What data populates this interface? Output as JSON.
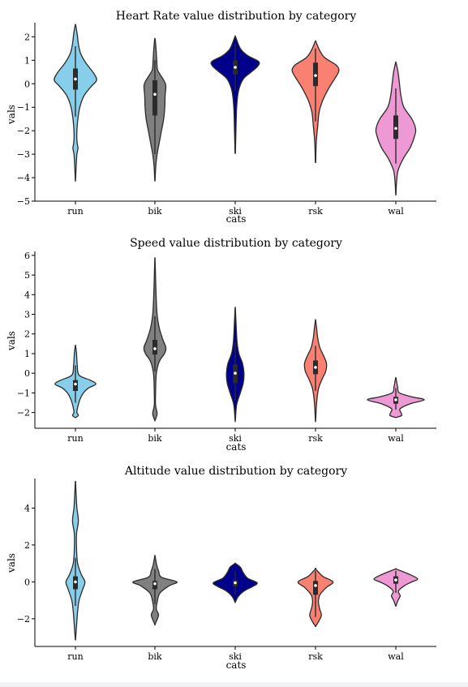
{
  "chart_data": [
    {
      "type": "violin",
      "title": "Heart Rate value distribution by category",
      "xlabel": "cats",
      "ylabel": "vals",
      "ylim": [
        -5,
        2.6
      ],
      "yticks": [
        -5,
        -4,
        -3,
        -2,
        -1,
        0,
        1,
        2
      ],
      "categories": [
        "run",
        "bik",
        "ski",
        "rsk",
        "wal"
      ],
      "colors": [
        "#87ceeb",
        "#808080",
        "#00008b",
        "#fa8072",
        "#ee99d4"
      ],
      "violins": [
        {
          "min": -4.1,
          "max": 2.5,
          "q1": -0.25,
          "median": 0.2,
          "q3": 0.65,
          "wmin": -1.4,
          "wmax": 1.6,
          "profile": [
            [
              -4.1,
              0.2
            ],
            [
              -3.5,
              1.0
            ],
            [
              -3.0,
              2.0
            ],
            [
              -2.75,
              3.5
            ],
            [
              -2.55,
              2.5
            ],
            [
              -2.2,
              1.8
            ],
            [
              -1.6,
              3.0
            ],
            [
              -1.0,
              6
            ],
            [
              -0.5,
              12
            ],
            [
              -0.1,
              22
            ],
            [
              0.15,
              29
            ],
            [
              0.45,
              25
            ],
            [
              0.9,
              14
            ],
            [
              1.3,
              7
            ],
            [
              1.7,
              4
            ],
            [
              2.1,
              2.5
            ],
            [
              2.5,
              0.3
            ]
          ]
        },
        {
          "min": -4.1,
          "max": 1.9,
          "q1": -1.35,
          "median": -0.45,
          "q3": 0.15,
          "wmin": -3.0,
          "wmax": 1.0,
          "profile": [
            [
              -4.1,
              0.2
            ],
            [
              -3.5,
              1.2
            ],
            [
              -3.0,
              3
            ],
            [
              -2.5,
              6
            ],
            [
              -2.0,
              9
            ],
            [
              -1.5,
              12
            ],
            [
              -1.0,
              13.5
            ],
            [
              -0.5,
              14
            ],
            [
              -0.1,
              15
            ],
            [
              0.1,
              13
            ],
            [
              0.4,
              7
            ],
            [
              0.6,
              3.5
            ],
            [
              1.0,
              2.5
            ],
            [
              1.5,
              1.5
            ],
            [
              1.9,
              0.3
            ]
          ]
        },
        {
          "min": -2.9,
          "max": 2.0,
          "q1": 0.4,
          "median": 0.7,
          "q3": 1.0,
          "wmin": -0.3,
          "wmax": 1.7,
          "profile": [
            [
              -2.9,
              0.3
            ],
            [
              -2.0,
              1
            ],
            [
              -1.0,
              2
            ],
            [
              -0.3,
              4.5
            ],
            [
              0.2,
              11
            ],
            [
              0.5,
              22
            ],
            [
              0.75,
              31
            ],
            [
              0.95,
              32
            ],
            [
              1.2,
              17
            ],
            [
              1.5,
              7
            ],
            [
              2.0,
              0.5
            ]
          ]
        },
        {
          "min": -3.3,
          "max": 1.8,
          "q1": -0.1,
          "median": 0.35,
          "q3": 0.9,
          "wmin": -1.6,
          "wmax": 1.5,
          "profile": [
            [
              -3.3,
              0.3
            ],
            [
              -2.5,
              1
            ],
            [
              -1.8,
              3
            ],
            [
              -1.2,
              5
            ],
            [
              -0.7,
              10
            ],
            [
              -0.2,
              18
            ],
            [
              0.2,
              26
            ],
            [
              0.55,
              32
            ],
            [
              0.8,
              28
            ],
            [
              1.1,
              13
            ],
            [
              1.4,
              6
            ],
            [
              1.8,
              0.4
            ]
          ]
        },
        {
          "min": -4.7,
          "max": 0.9,
          "q1": -2.35,
          "median": -1.9,
          "q3": -1.35,
          "wmin": -3.4,
          "wmax": -0.2,
          "profile": [
            [
              -4.7,
              0.2
            ],
            [
              -4.2,
              1
            ],
            [
              -3.7,
              3
            ],
            [
              -3.2,
              10
            ],
            [
              -2.7,
              20
            ],
            [
              -2.2,
              26
            ],
            [
              -1.9,
              27
            ],
            [
              -1.5,
              22
            ],
            [
              -1.0,
              11
            ],
            [
              -0.5,
              7
            ],
            [
              0.0,
              5
            ],
            [
              0.5,
              3
            ],
            [
              0.9,
              0.3
            ]
          ]
        }
      ]
    },
    {
      "type": "violin",
      "title": "Speed value distribution by category",
      "xlabel": "cats",
      "ylabel": "vals",
      "ylim": [
        -2.8,
        6.2
      ],
      "yticks": [
        -2,
        -1,
        0,
        1,
        2,
        3,
        4,
        5,
        6
      ],
      "categories": [
        "run",
        "bik",
        "ski",
        "rsk",
        "wal"
      ],
      "colors": [
        "#87ceeb",
        "#808080",
        "#00008b",
        "#fa8072",
        "#ee99d4"
      ],
      "violins": [
        {
          "min": -2.25,
          "max": 1.4,
          "q1": -0.9,
          "median": -0.55,
          "q3": -0.35,
          "wmin": -1.5,
          "wmax": 0.4,
          "profile": [
            [
              -2.25,
              0.3
            ],
            [
              -2.15,
              4
            ],
            [
              -2.0,
              2
            ],
            [
              -1.75,
              3
            ],
            [
              -1.35,
              6
            ],
            [
              -1.0,
              11
            ],
            [
              -0.75,
              18
            ],
            [
              -0.55,
              28
            ],
            [
              -0.35,
              20
            ],
            [
              -0.1,
              5
            ],
            [
              0.4,
              2.5
            ],
            [
              1.0,
              1.5
            ],
            [
              1.4,
              0.2
            ]
          ]
        },
        {
          "min": -2.4,
          "max": 5.8,
          "q1": 0.95,
          "median": 1.25,
          "q3": 1.7,
          "wmin": 0.1,
          "wmax": 2.9,
          "profile": [
            [
              -2.4,
              0.2
            ],
            [
              -2.05,
              3
            ],
            [
              -1.6,
              0.8
            ],
            [
              -0.8,
              1
            ],
            [
              0.0,
              2
            ],
            [
              0.6,
              6
            ],
            [
              1.0,
              13
            ],
            [
              1.3,
              15
            ],
            [
              1.7,
              11
            ],
            [
              2.3,
              6
            ],
            [
              3.0,
              3
            ],
            [
              3.8,
              1.8
            ],
            [
              4.7,
              1
            ],
            [
              5.8,
              0.2
            ]
          ]
        },
        {
          "min": -2.4,
          "max": 3.3,
          "q1": -0.5,
          "median": 0.0,
          "q3": 0.45,
          "wmin": -1.4,
          "wmax": 1.6,
          "profile": [
            [
              -2.4,
              0.2
            ],
            [
              -1.6,
              2
            ],
            [
              -1.0,
              7
            ],
            [
              -0.5,
              11
            ],
            [
              0.0,
              12
            ],
            [
              0.5,
              10
            ],
            [
              1.0,
              5
            ],
            [
              1.6,
              2.5
            ],
            [
              2.5,
              1.2
            ],
            [
              3.3,
              0.2
            ]
          ]
        },
        {
          "min": -2.4,
          "max": 2.7,
          "q1": -0.05,
          "median": 0.3,
          "q3": 0.65,
          "wmin": -0.9,
          "wmax": 1.4,
          "profile": [
            [
              -2.4,
              0.2
            ],
            [
              -1.5,
              1.5
            ],
            [
              -0.8,
              4
            ],
            [
              -0.3,
              9
            ],
            [
              0.1,
              14
            ],
            [
              0.5,
              15
            ],
            [
              0.9,
              11
            ],
            [
              1.3,
              6
            ],
            [
              1.8,
              3
            ],
            [
              2.3,
              1.5
            ],
            [
              2.7,
              0.2
            ]
          ]
        },
        {
          "min": -2.25,
          "max": -0.25,
          "q1": -1.55,
          "median": -1.35,
          "q3": -1.2,
          "wmin": -1.85,
          "wmax": -0.75,
          "profile": [
            [
              -2.25,
              0.3
            ],
            [
              -2.15,
              8
            ],
            [
              -2.0,
              7
            ],
            [
              -1.8,
              6
            ],
            [
              -1.55,
              20
            ],
            [
              -1.35,
              39
            ],
            [
              -1.2,
              22
            ],
            [
              -1.0,
              5
            ],
            [
              -0.7,
              2.5
            ],
            [
              -0.25,
              0.3
            ]
          ]
        }
      ]
    },
    {
      "type": "violin",
      "title": "Altitude value distribution by category",
      "xlabel": "cats",
      "ylabel": "vals",
      "ylim": [
        -3.5,
        5.6
      ],
      "yticks": [
        -2,
        0,
        2,
        4
      ],
      "categories": [
        "run",
        "bik",
        "ski",
        "rsk",
        "wal"
      ],
      "colors": [
        "#87ceeb",
        "#808080",
        "#00008b",
        "#fa8072",
        "#ee99d4"
      ],
      "violins": [
        {
          "min": -3.1,
          "max": 5.4,
          "q1": -0.4,
          "median": 0.0,
          "q3": 0.3,
          "wmin": -1.3,
          "wmax": 1.3,
          "profile": [
            [
              -3.1,
              0.2
            ],
            [
              -2.4,
              1.5
            ],
            [
              -1.6,
              3
            ],
            [
              -1.0,
              5
            ],
            [
              -0.4,
              10
            ],
            [
              0.0,
              13
            ],
            [
              0.4,
              8
            ],
            [
              1.0,
              3
            ],
            [
              1.8,
              1.5
            ],
            [
              2.6,
              1.5
            ],
            [
              3.3,
              4
            ],
            [
              4.0,
              2
            ],
            [
              4.7,
              1
            ],
            [
              5.4,
              0.2
            ]
          ]
        },
        {
          "min": -2.3,
          "max": 1.4,
          "q1": -0.4,
          "median": -0.1,
          "q3": 0.05,
          "wmin": -1.2,
          "wmax": 0.7,
          "profile": [
            [
              -2.3,
              0.2
            ],
            [
              -1.8,
              5
            ],
            [
              -1.5,
              2
            ],
            [
              -1.1,
              3
            ],
            [
              -0.6,
              7
            ],
            [
              -0.2,
              20
            ],
            [
              0.0,
              30
            ],
            [
              0.25,
              9
            ],
            [
              0.6,
              5
            ],
            [
              0.9,
              2.5
            ],
            [
              1.4,
              0.2
            ]
          ]
        },
        {
          "min": -1.1,
          "max": 1.0,
          "q1": -0.25,
          "median": -0.05,
          "q3": 0.1,
          "wmin": -0.7,
          "wmax": 0.6,
          "profile": [
            [
              -1.1,
              0.2
            ],
            [
              -0.8,
              4
            ],
            [
              -0.5,
              12
            ],
            [
              -0.25,
              24
            ],
            [
              -0.05,
              30
            ],
            [
              0.2,
              17
            ],
            [
              0.5,
              11
            ],
            [
              0.8,
              7
            ],
            [
              1.0,
              0.3
            ]
          ]
        },
        {
          "min": -2.4,
          "max": 0.7,
          "q1": -0.7,
          "median": -0.2,
          "q3": 0.05,
          "wmin": -1.9,
          "wmax": 0.6,
          "profile": [
            [
              -2.4,
              0.2
            ],
            [
              -2.1,
              5
            ],
            [
              -1.8,
              8
            ],
            [
              -1.5,
              6
            ],
            [
              -1.1,
              4
            ],
            [
              -0.7,
              6
            ],
            [
              -0.3,
              15
            ],
            [
              0.0,
              24
            ],
            [
              0.3,
              10
            ],
            [
              0.7,
              0.2
            ]
          ]
        },
        {
          "min": -1.3,
          "max": 0.7,
          "q1": -0.1,
          "median": 0.1,
          "q3": 0.3,
          "wmin": -0.6,
          "wmax": 0.6,
          "profile": [
            [
              -1.3,
              0.2
            ],
            [
              -1.0,
              3
            ],
            [
              -0.75,
              6
            ],
            [
              -0.5,
              3.5
            ],
            [
              -0.2,
              12
            ],
            [
              0.0,
              22
            ],
            [
              0.15,
              30
            ],
            [
              0.35,
              22
            ],
            [
              0.55,
              10
            ],
            [
              0.7,
              0.2
            ]
          ]
        }
      ]
    }
  ]
}
